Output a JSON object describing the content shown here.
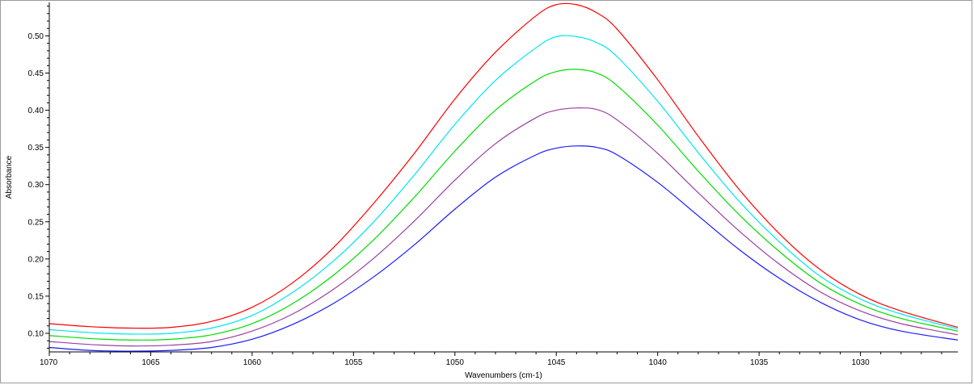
{
  "chart_data": {
    "type": "line",
    "xlabel": "Wavenumbers (cm-1)",
    "ylabel": "Absorbance",
    "xlim": [
      1070,
      1025.2
    ],
    "ylim": [
      0.075,
      0.545
    ],
    "x_reversed": true,
    "grid": false,
    "x_ticks": [
      {
        "value": 1070,
        "label": "1070"
      },
      {
        "value": 1065,
        "label": "1065"
      },
      {
        "value": 1060,
        "label": "1060"
      },
      {
        "value": 1055,
        "label": "1055"
      },
      {
        "value": 1050,
        "label": "1050"
      },
      {
        "value": 1045,
        "label": "1045"
      },
      {
        "value": 1040,
        "label": "1040"
      },
      {
        "value": 1035,
        "label": "1035"
      },
      {
        "value": 1030,
        "label": "1030"
      }
    ],
    "y_ticks": [
      {
        "value": 0.1,
        "label": "0.10"
      },
      {
        "value": 0.15,
        "label": "0.15"
      },
      {
        "value": 0.2,
        "label": "0.20"
      },
      {
        "value": 0.25,
        "label": "0.25"
      },
      {
        "value": 0.3,
        "label": "0.30"
      },
      {
        "value": 0.35,
        "label": "0.35"
      },
      {
        "value": 0.4,
        "label": "0.40"
      },
      {
        "value": 0.45,
        "label": "0.45"
      },
      {
        "value": 0.5,
        "label": "0.50"
      }
    ],
    "x": [
      1070,
      1068,
      1066,
      1064,
      1062,
      1060,
      1058,
      1056,
      1054,
      1052,
      1050,
      1048,
      1046,
      1045,
      1044,
      1043,
      1042,
      1040,
      1038,
      1036,
      1034,
      1032,
      1030,
      1028,
      1025.2
    ],
    "series": [
      {
        "color": "#ff0000",
        "values": [
          0.113,
          0.109,
          0.107,
          0.108,
          0.116,
          0.135,
          0.168,
          0.215,
          0.275,
          0.342,
          0.415,
          0.478,
          0.527,
          0.542,
          0.542,
          0.531,
          0.509,
          0.441,
          0.365,
          0.294,
          0.234,
          0.186,
          0.152,
          0.13,
          0.108
        ]
      },
      {
        "color": "#00e5ee",
        "values": [
          0.105,
          0.101,
          0.099,
          0.1,
          0.107,
          0.124,
          0.155,
          0.197,
          0.25,
          0.313,
          0.381,
          0.44,
          0.484,
          0.499,
          0.499,
          0.491,
          0.472,
          0.412,
          0.343,
          0.278,
          0.223,
          0.177,
          0.146,
          0.126,
          0.106
        ]
      },
      {
        "color": "#00dd00",
        "values": [
          0.097,
          0.093,
          0.091,
          0.092,
          0.098,
          0.113,
          0.14,
          0.178,
          0.226,
          0.283,
          0.345,
          0.4,
          0.44,
          0.452,
          0.455,
          0.45,
          0.433,
          0.38,
          0.318,
          0.26,
          0.21,
          0.168,
          0.139,
          0.12,
          0.103
        ]
      },
      {
        "color": "#9b3fa0",
        "values": [
          0.089,
          0.085,
          0.083,
          0.084,
          0.089,
          0.103,
          0.126,
          0.159,
          0.201,
          0.251,
          0.306,
          0.355,
          0.39,
          0.4,
          0.403,
          0.401,
          0.387,
          0.342,
          0.289,
          0.238,
          0.193,
          0.156,
          0.13,
          0.113,
          0.098
        ]
      },
      {
        "color": "#1a1aff",
        "values": [
          0.081,
          0.077,
          0.076,
          0.077,
          0.081,
          0.092,
          0.112,
          0.14,
          0.176,
          0.219,
          0.267,
          0.31,
          0.34,
          0.349,
          0.352,
          0.35,
          0.34,
          0.303,
          0.258,
          0.213,
          0.174,
          0.142,
          0.118,
          0.103,
          0.091
        ]
      }
    ]
  }
}
